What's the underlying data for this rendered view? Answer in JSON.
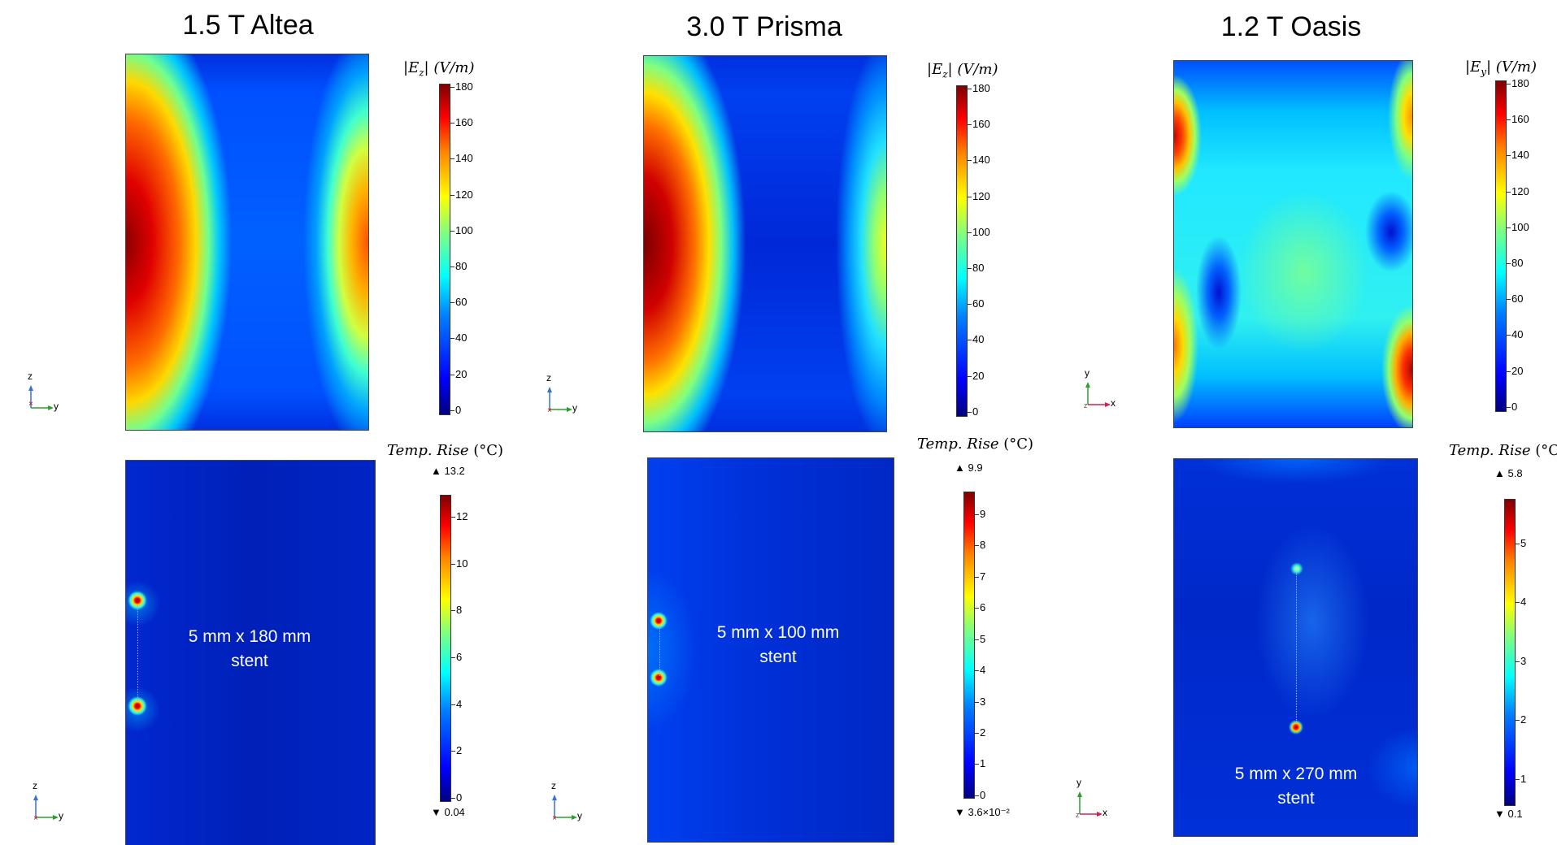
{
  "panels": [
    {
      "title": "1.5 T Altea",
      "field": {
        "label": "|E_z| (V/m)",
        "symbol": "E",
        "sub": "z",
        "units": "(V/m)",
        "ticks": [
          "180",
          "160",
          "140",
          "120",
          "100",
          "80",
          "60",
          "40",
          "20",
          "0"
        ]
      },
      "temp": {
        "label_italic": "Temp. Rise",
        "label_unit": "(°C)",
        "max": "▲ 13.2",
        "min": "▼ 0.04",
        "ticks": [
          "12",
          "10",
          "8",
          "6",
          "4",
          "2",
          "0"
        ]
      },
      "stent": "5 mm x 180 mm stent",
      "stent_line1": "5 mm x 180 mm",
      "stent_line2": "stent",
      "axes_top": {
        "v": "z",
        "h": "y"
      },
      "axes_bottom": {
        "v": "z",
        "h": "y"
      }
    },
    {
      "title": "3.0 T Prisma",
      "field": {
        "label": "|E_z| (V/m)",
        "symbol": "E",
        "sub": "z",
        "units": "(V/m)",
        "ticks": [
          "180",
          "160",
          "140",
          "120",
          "100",
          "80",
          "60",
          "40",
          "20",
          "0"
        ]
      },
      "temp": {
        "label_italic": "Temp. Rise",
        "label_unit": "(°C)",
        "max": "▲ 9.9",
        "min": "▼ 3.6×10⁻²",
        "ticks": [
          "9",
          "8",
          "7",
          "6",
          "5",
          "4",
          "3",
          "2",
          "1",
          "0"
        ]
      },
      "stent": "5 mm x 100 mm stent",
      "stent_line1": "5 mm x 100 mm",
      "stent_line2": "stent",
      "axes_top": {
        "v": "z",
        "h": "y"
      },
      "axes_bottom": {
        "v": "z",
        "h": "y"
      }
    },
    {
      "title": "1.2 T Oasis",
      "field": {
        "label": "|E_y| (V/m)",
        "symbol": "E",
        "sub": "y",
        "units": "(V/m)",
        "ticks": [
          "180",
          "160",
          "140",
          "120",
          "100",
          "80",
          "60",
          "40",
          "20",
          "0"
        ]
      },
      "temp": {
        "label_italic": "Temp. Rise",
        "label_unit": "(°C)",
        "max": "▲ 5.8",
        "min": "▼ 0.1",
        "ticks": [
          "5",
          "4",
          "3",
          "2",
          "1"
        ]
      },
      "stent": "5 mm x 270 mm stent",
      "stent_line1": "5 mm x 270 mm",
      "stent_line2": "stent",
      "axes_top": {
        "v": "y",
        "h": "x"
      },
      "axes_bottom": {
        "v": "y",
        "h": "x"
      }
    }
  ],
  "colors": {
    "deep_blue": "#00007f",
    "blue": "#0000ff",
    "cyan": "#00ffff",
    "yellow": "#ffff00",
    "red": "#ff0000",
    "dark_red": "#7f0000"
  }
}
